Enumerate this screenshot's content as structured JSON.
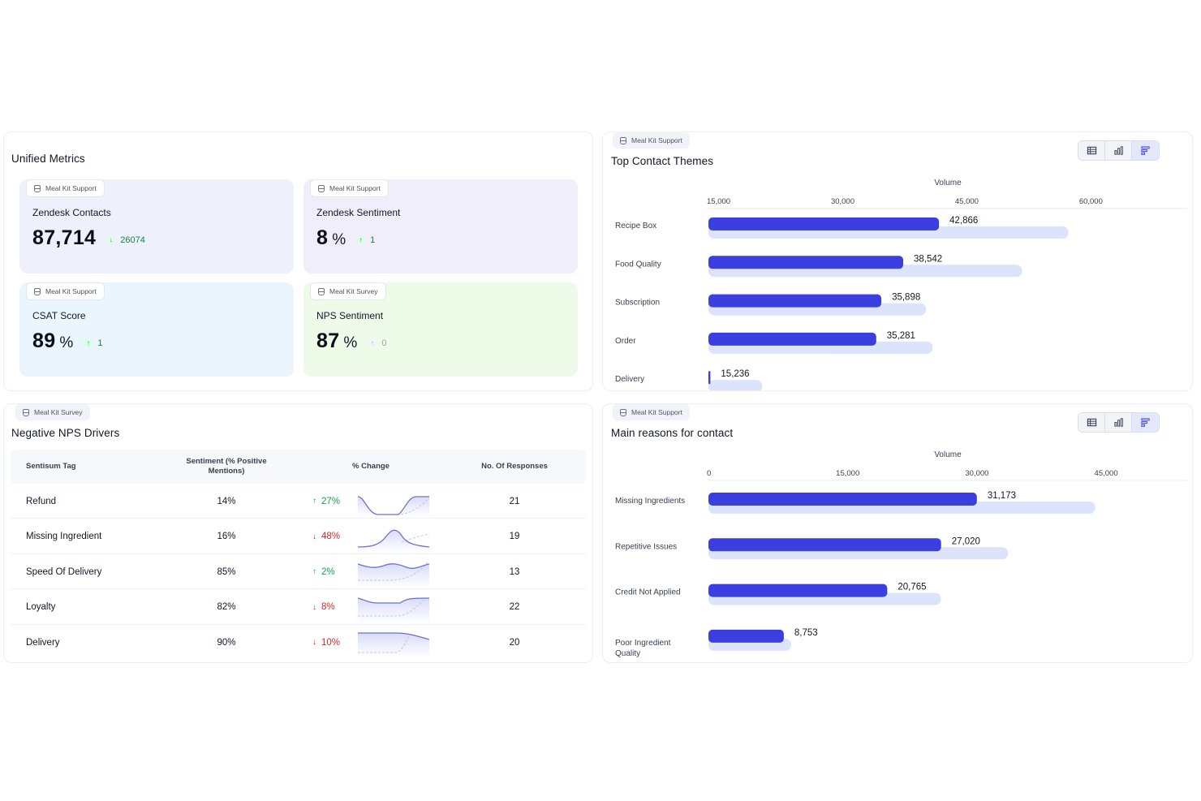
{
  "unified_metrics": {
    "title": "Unified Metrics",
    "tiles": [
      {
        "source": "Meal Kit Support",
        "label": "Zendesk Contacts",
        "value": "87,714",
        "unit": "",
        "delta": "26074",
        "delta_dir": "down",
        "delta_color": "green",
        "bg": "#eef0fc"
      },
      {
        "source": "Meal Kit Support",
        "label": "Zendesk Sentiment",
        "value": "8",
        "unit": "%",
        "delta": "1",
        "delta_dir": "up",
        "delta_color": "green",
        "bg": "#f1eefc"
      },
      {
        "source": "Meal Kit Support",
        "label": "CSAT Score",
        "value": "89",
        "unit": "%",
        "delta": "1",
        "delta_dir": "up",
        "delta_color": "green",
        "bg": "#eaf5fd"
      },
      {
        "source": "Meal Kit Survey",
        "label": "NPS Sentiment",
        "value": "87",
        "unit": "%",
        "delta": "0",
        "delta_dir": "up",
        "delta_color": "grey",
        "bg": "#effbe9"
      }
    ]
  },
  "top_contact_themes": {
    "source": "Meal Kit Support",
    "title": "Top Contact Themes",
    "toggle_icons": [
      "table-icon",
      "bar-chart-icon",
      "horizontal-bar-icon"
    ]
  },
  "main_reasons": {
    "source": "Meal Kit Support",
    "title": "Main reasons for contact",
    "toggle_icons": [
      "table-icon",
      "bar-chart-icon",
      "horizontal-bar-icon"
    ]
  },
  "negative_nps": {
    "source": "Meal Kit Survey",
    "title": "Negative NPS Drivers",
    "headers": [
      "Sentisum Tag",
      "Sentiment (% Positive Mentions)",
      "% Change",
      "No. Of Responses"
    ],
    "rows": [
      {
        "tag": "Refund",
        "sentiment": "14%",
        "change": "27%",
        "dir": "up",
        "responses": "21"
      },
      {
        "tag": "Missing Ingredient",
        "sentiment": "16%",
        "change": "48%",
        "dir": "down",
        "responses": "19"
      },
      {
        "tag": "Speed Of Delivery",
        "sentiment": "85%",
        "change": "2%",
        "dir": "up",
        "responses": "13"
      },
      {
        "tag": "Loyalty",
        "sentiment": "82%",
        "change": "8%",
        "dir": "down",
        "responses": "22"
      },
      {
        "tag": "Delivery",
        "sentiment": "90%",
        "change": "10%",
        "dir": "down",
        "responses": "20"
      }
    ]
  },
  "chart_data": [
    {
      "type": "bar",
      "orientation": "horizontal",
      "title": "Top Contact Themes",
      "xlabel": "Volume",
      "ticks": [
        "15,000",
        "30,000",
        "45,000",
        "60,000"
      ],
      "tick_values": [
        15000,
        30000,
        45000,
        60000
      ],
      "xlim": [
        15000,
        66000
      ],
      "categories": [
        "Recipe Box",
        "Food Quality",
        "Subscription",
        "Order",
        "Delivery"
      ],
      "series": [
        {
          "values": [
            42866,
            38542,
            35898,
            35281,
            15236
          ],
          "color": "#3b3fe0"
        },
        {
          "values": [
            58500,
            52900,
            41300,
            42100,
            21500
          ],
          "color": "#dbe4fb"
        }
      ],
      "labels": [
        "42,866",
        "38,542",
        "35,898",
        "35,281",
        "15,236"
      ]
    },
    {
      "type": "bar",
      "orientation": "horizontal",
      "title": "Main reasons for contact",
      "xlabel": "Volume",
      "ticks": [
        "0",
        "15,000",
        "30,000",
        "45,000"
      ],
      "tick_values": [
        0,
        15000,
        30000,
        45000
      ],
      "xlim": [
        0,
        49000
      ],
      "categories": [
        "Missing Ingredients",
        "Repetitive Issues",
        "Credit Not Applied",
        "Poor Ingredient Quality"
      ],
      "category_lines": [
        [
          "Missing Ingredients"
        ],
        [
          "Repetitive Issues"
        ],
        [
          "Credit Not Applied"
        ],
        [
          "Poor Ingredient",
          "Quality"
        ]
      ],
      "series": [
        {
          "values": [
            31173,
            27020,
            20765,
            8753
          ],
          "color": "#3b3fe0"
        },
        {
          "values": [
            44900,
            34800,
            27000,
            9600
          ],
          "color": "#dbe4fb"
        }
      ],
      "labels": [
        "31,173",
        "27,020",
        "20,765",
        "8,753"
      ]
    }
  ]
}
